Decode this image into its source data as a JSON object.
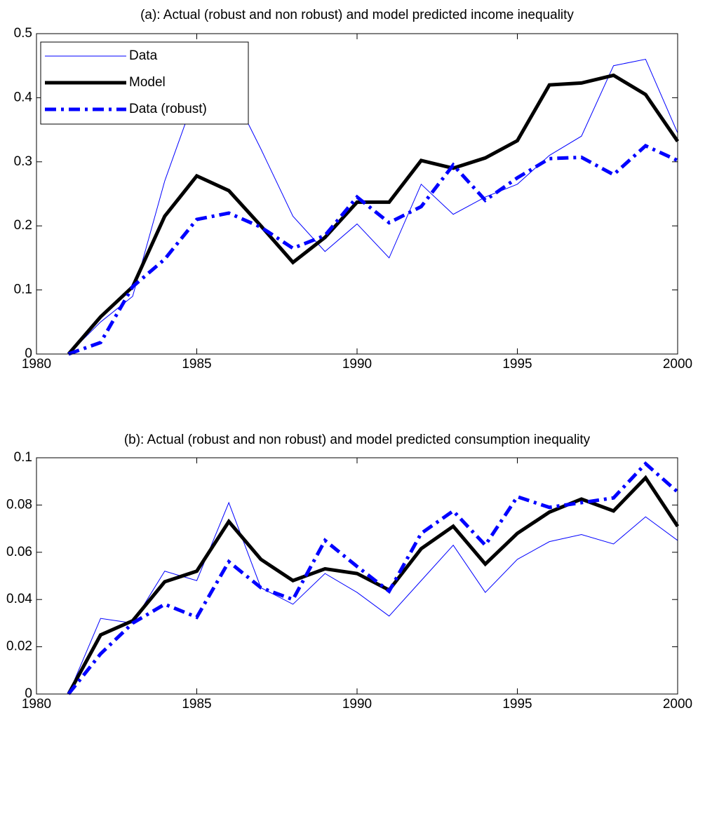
{
  "chart_data": [
    {
      "type": "line",
      "title": "(a): Actual (robust and non robust) and model predicted income inequality",
      "x": [
        1981,
        1982,
        1983,
        1984,
        1985,
        1986,
        1987,
        1988,
        1989,
        1990,
        1991,
        1992,
        1993,
        1994,
        1995,
        1996,
        1997,
        1998,
        1999,
        2000
      ],
      "series": [
        {
          "name": "Data",
          "color": "#0000ff",
          "width": 1,
          "dash": "solid",
          "values": [
            0,
            0.05,
            0.09,
            0.27,
            0.41,
            0.42,
            0.32,
            0.215,
            0.16,
            0.203,
            0.15,
            0.265,
            0.218,
            0.245,
            0.265,
            0.31,
            0.34,
            0.45,
            0.46,
            0.345
          ]
        },
        {
          "name": "Model",
          "color": "#000000",
          "width": 5,
          "dash": "solid",
          "values": [
            0,
            0.058,
            0.105,
            0.215,
            0.278,
            0.255,
            0.2,
            0.143,
            0.182,
            0.237,
            0.237,
            0.302,
            0.29,
            0.306,
            0.333,
            0.42,
            0.423,
            0.435,
            0.405,
            0.332
          ]
        },
        {
          "name": "Data (robust)",
          "color": "#0000ff",
          "width": 5,
          "dash": "dashdot",
          "values": [
            0,
            0.018,
            0.105,
            0.148,
            0.21,
            0.22,
            0.198,
            0.165,
            0.185,
            0.245,
            0.205,
            0.23,
            0.295,
            0.24,
            0.275,
            0.305,
            0.307,
            0.28,
            0.325,
            0.302
          ]
        }
      ],
      "xlim": [
        1980,
        2000
      ],
      "xticks": [
        1980,
        1985,
        1990,
        1995,
        2000
      ],
      "ylim": [
        0,
        0.5
      ],
      "yticks": [
        0,
        0.1,
        0.2,
        0.3,
        0.4,
        0.5
      ],
      "legend": "northwest"
    },
    {
      "type": "line",
      "title": "(b): Actual (robust and non robust) and model predicted consumption inequality",
      "x": [
        1981,
        1982,
        1983,
        1984,
        1985,
        1986,
        1987,
        1988,
        1989,
        1990,
        1991,
        1992,
        1993,
        1994,
        1995,
        1996,
        1997,
        1998,
        1999,
        2000
      ],
      "series": [
        {
          "color": "#0000ff",
          "width": 1,
          "dash": "solid",
          "values": [
            0,
            0.032,
            0.03,
            0.052,
            0.048,
            0.081,
            0.045,
            0.038,
            0.051,
            0.043,
            0.033,
            0.048,
            0.063,
            0.043,
            0.057,
            0.0645,
            0.0675,
            0.0635,
            0.075,
            0.065
          ]
        },
        {
          "color": "#000000",
          "width": 5,
          "dash": "solid",
          "values": [
            0,
            0.025,
            0.031,
            0.0475,
            0.052,
            0.073,
            0.057,
            0.048,
            0.053,
            0.051,
            0.044,
            0.0615,
            0.071,
            0.055,
            0.068,
            0.077,
            0.0825,
            0.0775,
            0.0915,
            0.071
          ]
        },
        {
          "color": "#0000ff",
          "width": 5,
          "dash": "dashdot",
          "values": [
            0,
            0.017,
            0.03,
            0.038,
            0.0325,
            0.056,
            0.045,
            0.04,
            0.065,
            0.054,
            0.0435,
            0.068,
            0.0775,
            0.063,
            0.0835,
            0.079,
            0.081,
            0.083,
            0.0975,
            0.0855
          ]
        }
      ],
      "xlim": [
        1980,
        2000
      ],
      "xticks": [
        1980,
        1985,
        1990,
        1995,
        2000
      ],
      "ylim": [
        0,
        0.1
      ],
      "yticks": [
        0,
        0.02,
        0.04,
        0.06,
        0.08,
        0.1
      ]
    }
  ]
}
